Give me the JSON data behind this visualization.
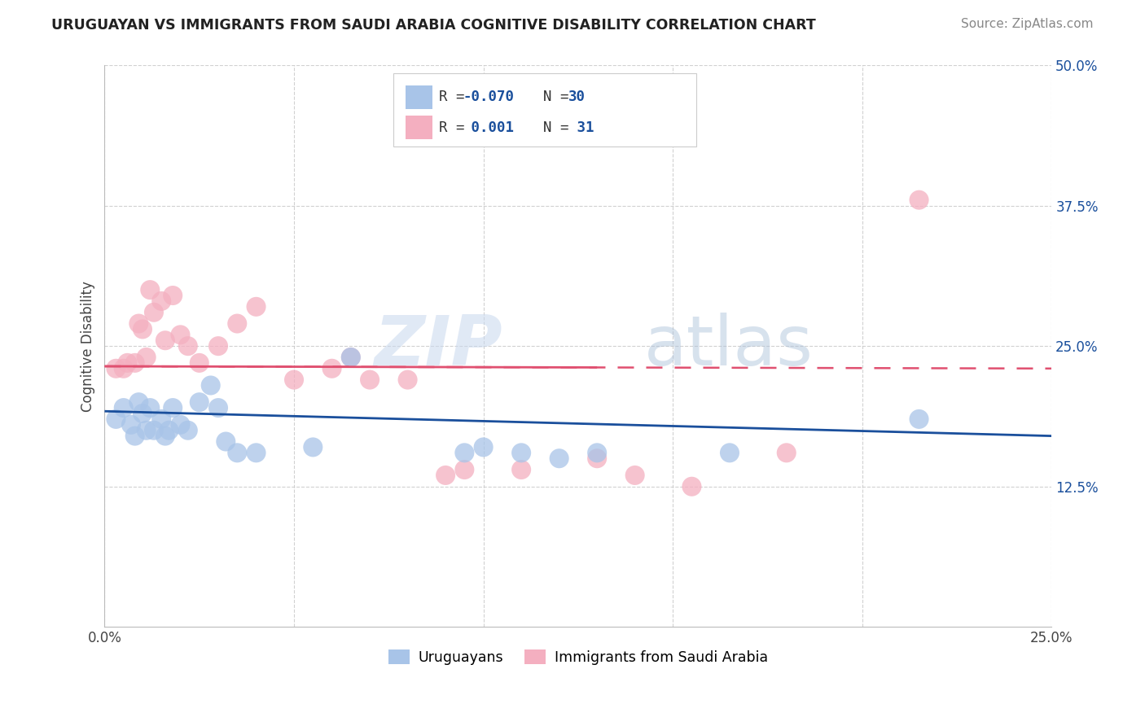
{
  "title": "URUGUAYAN VS IMMIGRANTS FROM SAUDI ARABIA COGNITIVE DISABILITY CORRELATION CHART",
  "source": "Source: ZipAtlas.com",
  "ylabel": "Cognitive Disability",
  "xlim": [
    0.0,
    0.25
  ],
  "ylim": [
    0.0,
    0.5
  ],
  "xticks": [
    0.0,
    0.05,
    0.1,
    0.15,
    0.2,
    0.25
  ],
  "yticks": [
    0.125,
    0.25,
    0.375,
    0.5
  ],
  "xticklabels": [
    "0.0%",
    "",
    "",
    "",
    "",
    "25.0%"
  ],
  "yticklabels": [
    "12.5%",
    "25.0%",
    "37.5%",
    "50.0%"
  ],
  "r_blue": "-0.070",
  "n_blue": "30",
  "r_pink": "0.001",
  "n_pink": "31",
  "blue_color": "#a8c4e8",
  "pink_color": "#f4afc0",
  "blue_line_color": "#1a4f9c",
  "pink_line_color": "#e05070",
  "grid_color": "#cccccc",
  "background_color": "#ffffff",
  "watermark_zip": "ZIP",
  "watermark_atlas": "atlas",
  "blue_scatter_x": [
    0.003,
    0.005,
    0.007,
    0.008,
    0.009,
    0.01,
    0.011,
    0.012,
    0.013,
    0.015,
    0.016,
    0.017,
    0.018,
    0.02,
    0.022,
    0.025,
    0.028,
    0.03,
    0.032,
    0.035,
    0.04,
    0.055,
    0.065,
    0.095,
    0.1,
    0.11,
    0.12,
    0.13,
    0.165,
    0.215
  ],
  "blue_scatter_y": [
    0.185,
    0.195,
    0.18,
    0.17,
    0.2,
    0.19,
    0.175,
    0.195,
    0.175,
    0.185,
    0.17,
    0.175,
    0.195,
    0.18,
    0.175,
    0.2,
    0.215,
    0.195,
    0.165,
    0.155,
    0.155,
    0.16,
    0.24,
    0.155,
    0.16,
    0.155,
    0.15,
    0.155,
    0.155,
    0.185
  ],
  "pink_scatter_x": [
    0.003,
    0.005,
    0.006,
    0.008,
    0.009,
    0.01,
    0.011,
    0.012,
    0.013,
    0.015,
    0.016,
    0.018,
    0.02,
    0.022,
    0.025,
    0.03,
    0.035,
    0.04,
    0.05,
    0.06,
    0.065,
    0.07,
    0.08,
    0.09,
    0.095,
    0.11,
    0.13,
    0.14,
    0.155,
    0.18,
    0.215
  ],
  "pink_scatter_y": [
    0.23,
    0.23,
    0.235,
    0.235,
    0.27,
    0.265,
    0.24,
    0.3,
    0.28,
    0.29,
    0.255,
    0.295,
    0.26,
    0.25,
    0.235,
    0.25,
    0.27,
    0.285,
    0.22,
    0.23,
    0.24,
    0.22,
    0.22,
    0.135,
    0.14,
    0.14,
    0.15,
    0.135,
    0.125,
    0.155,
    0.38
  ],
  "blue_trend_y_start": 0.192,
  "blue_trend_y_end": 0.17,
  "pink_trend_y_start": 0.232,
  "pink_trend_y_end": 0.23
}
